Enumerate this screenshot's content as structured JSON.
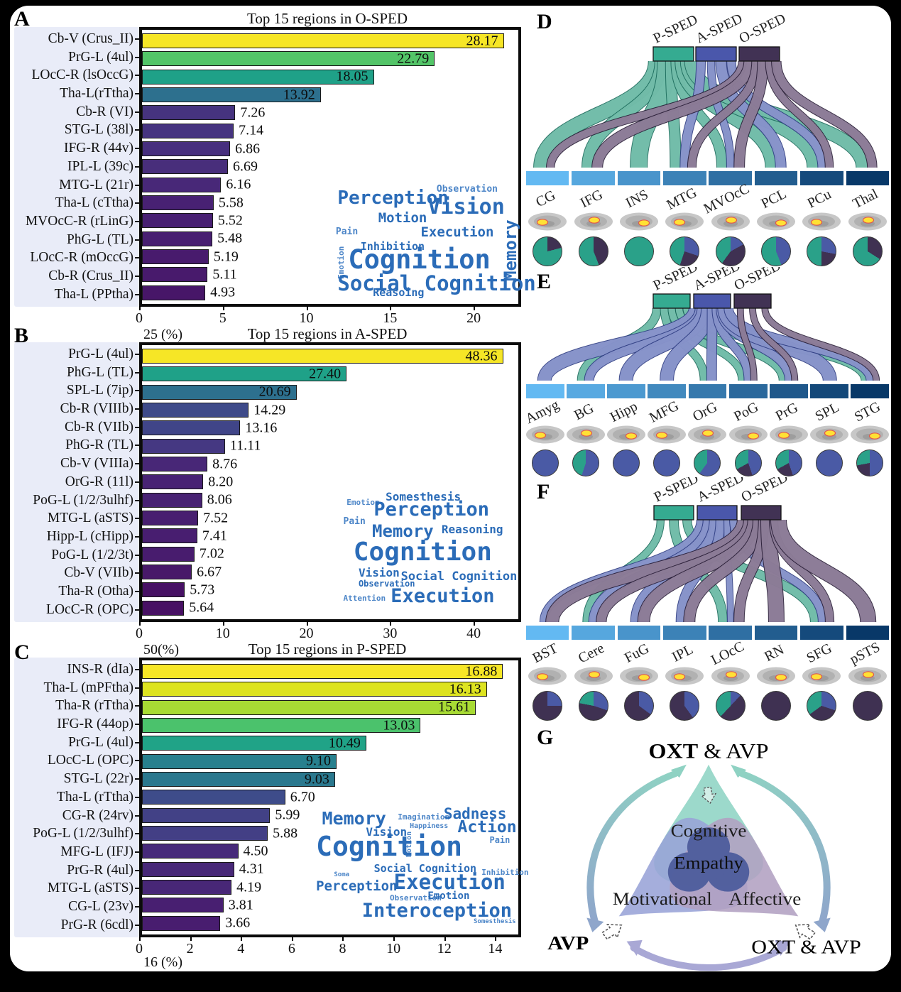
{
  "colors": {
    "p": "#35ab91",
    "a": "#4a57ab",
    "o": "#413254",
    "rib_p": "#82ccb8",
    "rib_a": "#99a3d8",
    "rib_o": "#a08fa9",
    "out_p": "#19695a",
    "out_a": "#2b3a80",
    "out_o": "#251a33",
    "pie_p": "#2aa189",
    "pie_a": "#4a5aa5",
    "pie_o": "#3f3152",
    "cloud_dark": "#2b6cb8",
    "cloud_light": "#4d86c8",
    "region_blue_start": "#63b9f2",
    "region_blue_end": "#08386a"
  },
  "chart_data": [
    {
      "letter": "A",
      "type": "bar",
      "title": "Top 15 regions in O-SPED",
      "xlabel_unit": "%",
      "categories": [
        "Cb-V (Crus_II)",
        "PrG-L (4ul)",
        "LOcC-R (lsOccG)",
        "Tha-L(rTtha)",
        "Cb-R (VI)",
        "STG-L (38l)",
        "IFG-R (44v)",
        "IPL-L (39c)",
        "MTG-L (21r)",
        "Tha-L (cTtha)",
        "MVOcC-R (rLinG)",
        "PhG-L (TL)",
        "LOcC-R (mOccG)",
        "Cb-R (Crus_II)",
        "Tha-L (PPtha)"
      ],
      "values": [
        "28.17",
        "22.79",
        "18.05",
        "13.92",
        "7.26",
        "7.14",
        "6.86",
        "6.69",
        "6.16",
        "5.58",
        "5.52",
        "5.48",
        "5.19",
        "5.11",
        "4.93"
      ],
      "colors": [
        "#f6e626",
        "#53c568",
        "#1fa188",
        "#2d708e",
        "#46337f",
        "#463480",
        "#472f7e",
        "#482e7b",
        "#482878",
        "#482173",
        "#482072",
        "#481f71",
        "#481b6d",
        "#481a6c",
        "#471668"
      ],
      "ticks": [
        "0",
        "5",
        "10",
        "15",
        "20"
      ],
      "tick_max": 22.5,
      "bar_max": 29.3,
      "axis_label": "25 (%)",
      "cloud": {
        "words": [
          [
            "Perception",
            1,
            4,
            26,
            ""
          ],
          [
            "Observation",
            57,
            0,
            13,
            "l"
          ],
          [
            "Motion",
            24,
            24,
            19,
            ""
          ],
          [
            "Vision",
            52,
            11,
            30,
            ""
          ],
          [
            "Memory",
            94,
            86,
            24,
            "v"
          ],
          [
            "Pain",
            0,
            38,
            13,
            "l"
          ],
          [
            "Execution",
            48,
            37,
            19,
            ""
          ],
          [
            "Inhibition",
            14,
            51,
            15,
            ""
          ],
          [
            "Emotion",
            1,
            84,
            11,
            "lv"
          ],
          [
            "Cognition",
            7,
            55,
            37,
            ""
          ],
          [
            "Social Cognition",
            1,
            79,
            29,
            ""
          ],
          [
            "Reasoing",
            21,
            92,
            15,
            ""
          ]
        ]
      }
    },
    {
      "letter": "B",
      "type": "bar",
      "title": "Top 15 regions in A-SPED",
      "xlabel_unit": "%",
      "categories": [
        "PrG-L (4ul)",
        "PhG-L (TL)",
        "SPL-L (7ip)",
        "Cb-R (VIIIb)",
        "Cb-R (VIIb)",
        "PhG-R (TL)",
        "Cb-V (VIIIa)",
        "OrG-R (11l)",
        "PoG-L (1/2/3ulhf)",
        "MTG-L (aSTS)",
        "Hipp-L (cHipp)",
        "PoG-L (1/2/3t)",
        "Cb-V (VIIb)",
        "Tha-R (Otha)",
        "LOcC-R (OPC)"
      ],
      "values": [
        "48.36",
        "27.40",
        "20.69",
        "14.29",
        "13.16",
        "11.11",
        "8.76",
        "8.20",
        "8.06",
        "7.52",
        "7.41",
        "7.02",
        "6.67",
        "5.73",
        "5.64"
      ],
      "colors": [
        "#f6e626",
        "#1fa188",
        "#2d708e",
        "#3e4a89",
        "#404588",
        "#453882",
        "#482777",
        "#482374",
        "#482273",
        "#481f70",
        "#481e70",
        "#481c6e",
        "#481969",
        "#471164",
        "#471063"
      ],
      "ticks": [
        "0",
        "10",
        "20",
        "30",
        "40"
      ],
      "tick_max": 45,
      "bar_max": 50.4,
      "axis_label": "50(%)",
      "cloud": {
        "words": [
          [
            "Emotion",
            2,
            6,
            11,
            "l"
          ],
          [
            "Somesthesis",
            25,
            0,
            16,
            ""
          ],
          [
            "Perception",
            18,
            7,
            27,
            ""
          ],
          [
            "Pain",
            0,
            21,
            13,
            "l"
          ],
          [
            "Memory",
            17,
            26,
            24,
            ""
          ],
          [
            "Reasoning",
            58,
            27,
            16,
            ""
          ],
          [
            "Cognition",
            6,
            40,
            36,
            ""
          ],
          [
            "Vision",
            9,
            63,
            16,
            ""
          ],
          [
            "Observation",
            9,
            73,
            12,
            ""
          ],
          [
            "Social Cognition",
            34,
            66,
            17,
            ""
          ],
          [
            "Attention",
            0,
            85,
            11,
            "l"
          ],
          [
            "Execution",
            28,
            79,
            27,
            ""
          ]
        ]
      }
    },
    {
      "letter": "C",
      "type": "bar",
      "title": "Top 15 regions in P-SPED",
      "xlabel_unit": "%",
      "categories": [
        "INS-R (dIa)",
        "Tha-L (mPFtha)",
        "Tha-R (rTtha)",
        "IFG-R (44op)",
        "PrG-L (4ul)",
        "LOcC-L (OPC)",
        "STG-L (22r)",
        "Tha-L (rTtha)",
        "CG-R (24rv)",
        "PoG-L (1/2/3ulhf)",
        "MFG-L (IFJ)",
        "PrG-R (4ul)",
        "MTG-L (aSTS)",
        "CG-L (23v)",
        "PrG-R (6cdl)"
      ],
      "values": [
        "16.88",
        "16.13",
        "15.61",
        "13.03",
        "10.49",
        "9.10",
        "9.03",
        "6.70",
        "5.99",
        "5.88",
        "4.50",
        "4.31",
        "4.19",
        "3.81",
        "3.66"
      ],
      "colors": [
        "#f6e626",
        "#dde320",
        "#a8db34",
        "#4bc26c",
        "#20a387",
        "#27808e",
        "#2a788e",
        "#3e4c8a",
        "#424186",
        "#433f85",
        "#472a7a",
        "#482878",
        "#482777",
        "#481f71",
        "#481d6f"
      ],
      "ticks": [
        "0",
        "2",
        "4",
        "6",
        "8",
        "10",
        "12",
        "14"
      ],
      "tick_max": 14.8,
      "bar_max": 17.6,
      "axis_label": "16 (%)",
      "cloud": {
        "words": [
          [
            "Memory",
            3,
            4,
            25,
            ""
          ],
          [
            "Imagination",
            41,
            7,
            11,
            "l"
          ],
          [
            "Sadness",
            64,
            2,
            21,
            ""
          ],
          [
            "Vision",
            25,
            18,
            16,
            ""
          ],
          [
            "Happiness",
            47,
            15,
            10,
            "l"
          ],
          [
            "Action",
            71,
            12,
            23,
            ""
          ],
          [
            "Motion",
            45,
            42,
            10,
            "lv"
          ],
          [
            "Cognition",
            0,
            23,
            38,
            ""
          ],
          [
            "Pain",
            87,
            25,
            12,
            "l"
          ],
          [
            "Social Cognition",
            29,
            47,
            15,
            ""
          ],
          [
            "Soma",
            9,
            54,
            9,
            "l"
          ],
          [
            "Inhibition",
            83,
            51,
            11,
            "l"
          ],
          [
            "Perception",
            0,
            60,
            19,
            ""
          ],
          [
            "Execution",
            39,
            54,
            29,
            ""
          ],
          [
            "Observation",
            37,
            71,
            11,
            "l"
          ],
          [
            "Emotion",
            56,
            69,
            14,
            ""
          ],
          [
            "Interoception",
            23,
            77,
            27,
            ""
          ],
          [
            "Somesthesis",
            79,
            91,
            9,
            "l"
          ]
        ]
      }
    },
    {
      "letter": "D",
      "type": "sankey",
      "sources": [
        {
          "label": "P-SPED",
          "key": "p"
        },
        {
          "label": "A-SPED",
          "key": "a"
        },
        {
          "label": "O-SPED",
          "key": "o"
        }
      ],
      "src_x": [
        182,
        242,
        303
      ],
      "src_w": 57,
      "regions": [
        {
          "name": "CG",
          "pie": {
            "p": 0.79,
            "a": 0,
            "o": 0.21
          }
        },
        {
          "name": "IFG",
          "pie": {
            "p": 0.56,
            "a": 0,
            "o": 0.44
          }
        },
        {
          "name": "INS",
          "pie": {
            "p": 1,
            "a": 0,
            "o": 0
          }
        },
        {
          "name": "MTG",
          "pie": {
            "p": 0.45,
            "a": 0.3,
            "o": 0.25
          }
        },
        {
          "name": "MVOcC",
          "pie": {
            "p": 0.4,
            "a": 0.17,
            "o": 0.43
          }
        },
        {
          "name": "PCL",
          "pie": {
            "p": 0.56,
            "a": 0.44,
            "o": 0
          }
        },
        {
          "name": "PCu",
          "pie": {
            "p": 0.5,
            "a": 0.28,
            "o": 0.22
          }
        },
        {
          "name": "Thal",
          "pie": {
            "p": 0.66,
            "a": 0,
            "o": 0.34
          }
        }
      ]
    },
    {
      "letter": "E",
      "type": "sankey",
      "sources": [
        {
          "label": "P-SPED",
          "key": "p"
        },
        {
          "label": "A-SPED",
          "key": "a"
        },
        {
          "label": "O-SPED",
          "key": "o"
        }
      ],
      "src_x": [
        182,
        239,
        296
      ],
      "src_w": 52,
      "regions": [
        {
          "name": "Amyg",
          "pie": {
            "p": 0,
            "a": 1,
            "o": 0
          }
        },
        {
          "name": "BG",
          "pie": {
            "p": 0.45,
            "a": 0.55,
            "o": 0
          }
        },
        {
          "name": "Hipp",
          "pie": {
            "p": 0,
            "a": 1,
            "o": 0
          }
        },
        {
          "name": "MFG",
          "pie": {
            "p": 0,
            "a": 1,
            "o": 0
          }
        },
        {
          "name": "OrG",
          "pie": {
            "p": 0.4,
            "a": 0.6,
            "o": 0
          }
        },
        {
          "name": "PoG",
          "pie": {
            "p": 0.33,
            "a": 0.45,
            "o": 0.22
          }
        },
        {
          "name": "PrG",
          "pie": {
            "p": 0.33,
            "a": 0.45,
            "o": 0.22
          }
        },
        {
          "name": "SPL",
          "pie": {
            "p": 0,
            "a": 1,
            "o": 0
          }
        },
        {
          "name": "STG",
          "pie": {
            "p": 0.28,
            "a": 0.5,
            "o": 0.22
          }
        }
      ]
    },
    {
      "letter": "F",
      "type": "sankey",
      "sources": [
        {
          "label": "P-SPED",
          "key": "p"
        },
        {
          "label": "A-SPED",
          "key": "a"
        },
        {
          "label": "O-SPED",
          "key": "o"
        }
      ],
      "src_x": [
        183,
        244,
        306
      ],
      "src_w": 56,
      "regions": [
        {
          "name": "BST",
          "pie": {
            "p": 0,
            "a": 0.25,
            "o": 0.75
          }
        },
        {
          "name": "Cere",
          "pie": {
            "p": 0.22,
            "a": 0.3,
            "o": 0.48
          }
        },
        {
          "name": "FuG",
          "pie": {
            "p": 0,
            "a": 0.35,
            "o": 0.65
          }
        },
        {
          "name": "IPL",
          "pie": {
            "p": 0,
            "a": 0.4,
            "o": 0.6
          }
        },
        {
          "name": "LOcC",
          "pie": {
            "p": 0.38,
            "a": 0.12,
            "o": 0.5
          }
        },
        {
          "name": "RN",
          "pie": {
            "p": 0,
            "a": 0,
            "o": 1
          }
        },
        {
          "name": "SFG",
          "pie": {
            "p": 0.35,
            "a": 0.3,
            "o": 0.35
          }
        },
        {
          "name": "pSTS",
          "pie": {
            "p": 0,
            "a": 0,
            "o": 1
          }
        }
      ]
    },
    {
      "letter": "G",
      "type": "diagram",
      "top_bold": "OXT",
      "top_rest": " & AVP",
      "left_label": "AVP",
      "right_label": "OXT & AVP",
      "petal_top": "Cognitive",
      "petal_left": "Motivational",
      "petal_right": "Affective",
      "center": "Empathy"
    }
  ]
}
